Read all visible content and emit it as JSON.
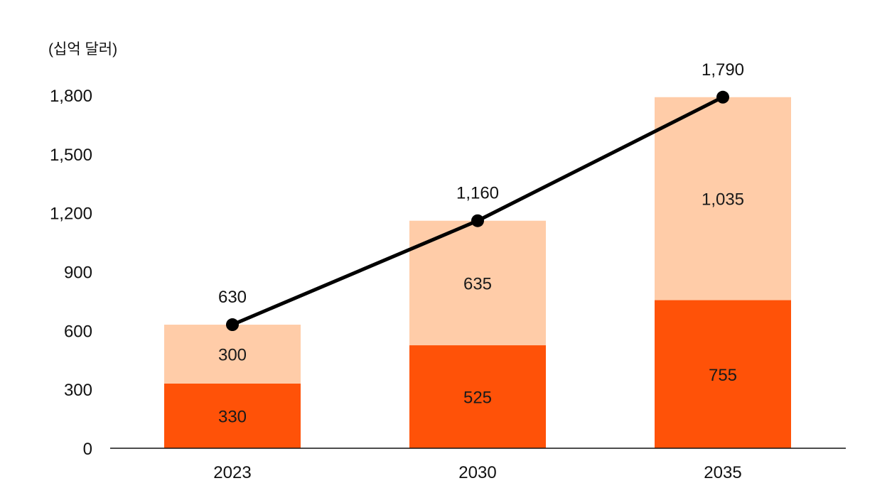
{
  "chart_data": {
    "type": "bar",
    "stacked": true,
    "unit_label": "(십억 달러)",
    "categories": [
      "2023",
      "2030",
      "2035"
    ],
    "series": [
      {
        "name": "lower",
        "color": "#FF5208",
        "values": [
          330,
          525,
          755
        ],
        "labels": [
          "330",
          "525",
          "755"
        ]
      },
      {
        "name": "upper",
        "color": "#FFCCA8",
        "values": [
          300,
          635,
          1035
        ],
        "labels": [
          "300",
          "635",
          "1,035"
        ]
      }
    ],
    "totals": {
      "type": "line",
      "color": "#000000",
      "values": [
        630,
        1160,
        1790
      ],
      "labels": [
        "630",
        "1,160",
        "1,790"
      ]
    },
    "yticks": [
      0,
      300,
      600,
      900,
      1200,
      1500,
      1800
    ],
    "ytick_labels": [
      "0",
      "300",
      "600",
      "900",
      "1,200",
      "1,500",
      "1,800"
    ],
    "ylim": [
      0,
      1800
    ],
    "grid": false,
    "legend": "none"
  }
}
